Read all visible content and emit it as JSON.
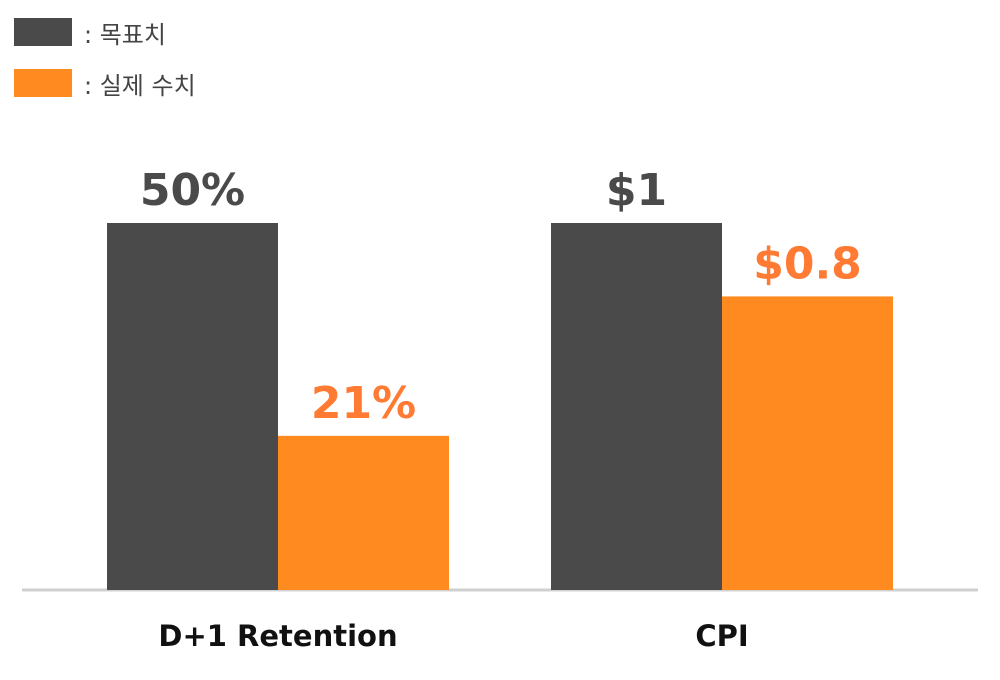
{
  "legend": [
    {
      "label": ": 목표치",
      "color": "#4a4a4a"
    },
    {
      "label": ": 실제 수치",
      "color": "#ff8a1f"
    }
  ],
  "chart_data": {
    "type": "bar",
    "categories": [
      "D+1 Retention",
      "CPI"
    ],
    "series": [
      {
        "name": "목표치",
        "color": "#4a4a4a",
        "label_color": "#4a4a4a",
        "values": [
          1.0,
          1.0
        ],
        "labels": [
          "50%",
          "$1"
        ]
      },
      {
        "name": "실제 수치",
        "color": "#ff8a1f",
        "label_color": "#ff7a33",
        "values": [
          0.42,
          0.8
        ],
        "labels": [
          "21%",
          "$0.8"
        ]
      }
    ],
    "value_note": "bars normalized so each target = 1.0; actual D+1 Retention 21% of 50% target, CPI $0.8 of $1 target",
    "grid": false,
    "legend_position": "top-left",
    "axis_color": "#d0d0d0"
  }
}
